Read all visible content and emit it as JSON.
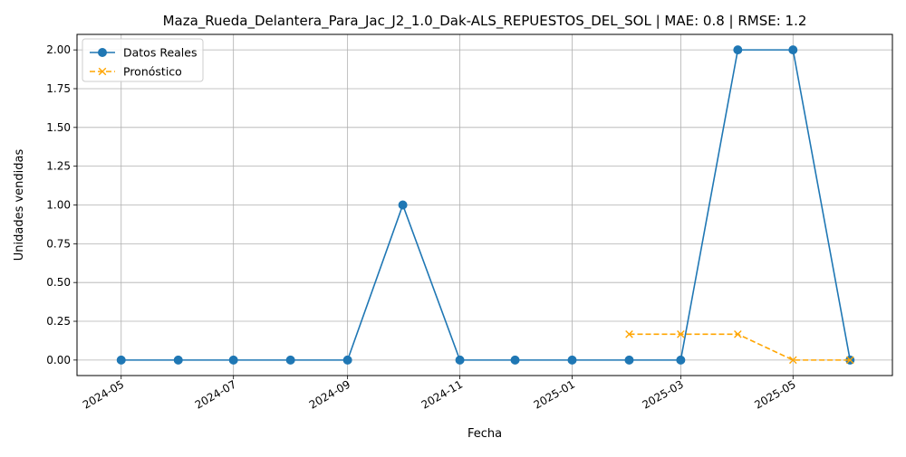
{
  "chart_data": {
    "type": "line",
    "title": "Maza_Rueda_Delantera_Para_Jac_J2_1.0_Dak-ALS_REPUESTOS_DEL_SOL | MAE: 0.8 | RMSE: 1.2",
    "xlabel": "Fecha",
    "ylabel": "Unidades vendidas",
    "xlim": [
      "2024-04-07",
      "2025-06-24"
    ],
    "ylim": [
      -0.1,
      2.1
    ],
    "grid": true,
    "legend_position": "top-left",
    "x_ticks": [
      "2024-05",
      "2024-07",
      "2024-09",
      "2024-11",
      "2025-01",
      "2025-03",
      "2025-05"
    ],
    "y_ticks": [
      "0.00",
      "0.25",
      "0.50",
      "0.75",
      "1.00",
      "1.25",
      "1.50",
      "1.75",
      "2.00"
    ],
    "series": [
      {
        "name": "Datos Reales",
        "color": "#1f77b4",
        "marker": "circle",
        "line_style": "solid",
        "x": [
          "2024-05-01",
          "2024-06-01",
          "2024-07-01",
          "2024-08-01",
          "2024-09-01",
          "2024-10-01",
          "2024-11-01",
          "2024-12-01",
          "2025-01-01",
          "2025-02-01",
          "2025-03-01",
          "2025-04-01",
          "2025-05-01",
          "2025-06-01"
        ],
        "y": [
          0,
          0,
          0,
          0,
          0,
          1,
          0,
          0,
          0,
          0,
          0,
          2,
          2,
          0
        ]
      },
      {
        "name": "Pronóstico",
        "color": "#ffa500",
        "marker": "x",
        "line_style": "dashed",
        "x": [
          "2025-02-01",
          "2025-03-01",
          "2025-04-01",
          "2025-05-01",
          "2025-06-01"
        ],
        "y": [
          0.1667,
          0.1667,
          0.1667,
          0,
          0
        ]
      }
    ]
  }
}
